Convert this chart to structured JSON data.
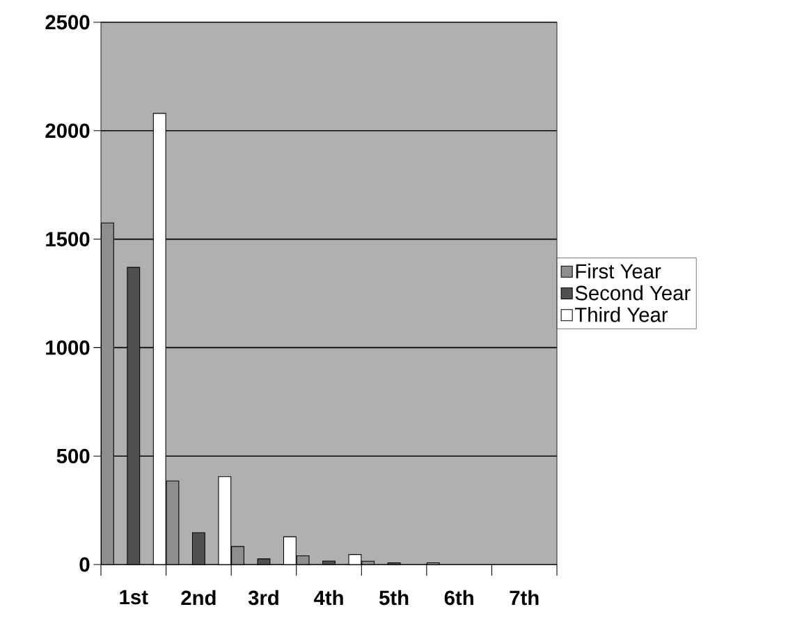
{
  "chart_data": {
    "type": "bar",
    "categories": [
      "1st",
      "2nd",
      "3rd",
      "4th",
      "5th",
      "6th",
      "7th"
    ],
    "series": [
      {
        "name": "First Year",
        "color": "#8e8e8e",
        "values": [
          1575,
          385,
          83,
          40,
          15,
          8,
          0
        ]
      },
      {
        "name": "Second Year",
        "color": "#505050",
        "values": [
          1370,
          147,
          26,
          16,
          8,
          0,
          0
        ]
      },
      {
        "name": "Third Year",
        "color": "#ffffff",
        "values": [
          2080,
          405,
          128,
          46,
          0,
          0,
          0
        ]
      }
    ],
    "ylim": [
      0,
      2500
    ],
    "yticks": [
      0,
      500,
      1000,
      1500,
      2000,
      2500
    ],
    "grid": "y",
    "legend": "right"
  }
}
